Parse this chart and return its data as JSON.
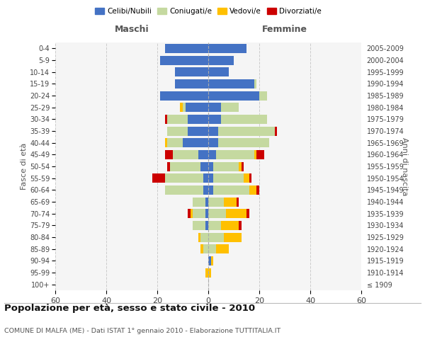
{
  "age_groups": [
    "100+",
    "95-99",
    "90-94",
    "85-89",
    "80-84",
    "75-79",
    "70-74",
    "65-69",
    "60-64",
    "55-59",
    "50-54",
    "45-49",
    "40-44",
    "35-39",
    "30-34",
    "25-29",
    "20-24",
    "15-19",
    "10-14",
    "5-9",
    "0-4"
  ],
  "birth_years": [
    "≤ 1909",
    "1910-1914",
    "1915-1919",
    "1920-1924",
    "1925-1929",
    "1930-1934",
    "1935-1939",
    "1940-1944",
    "1945-1949",
    "1950-1954",
    "1955-1959",
    "1960-1964",
    "1965-1969",
    "1970-1974",
    "1975-1979",
    "1980-1984",
    "1985-1989",
    "1990-1994",
    "1995-1999",
    "2000-2004",
    "2005-2009"
  ],
  "males": {
    "celibi": [
      0,
      0,
      0,
      0,
      0,
      1,
      1,
      1,
      2,
      2,
      3,
      4,
      10,
      8,
      8,
      9,
      19,
      13,
      13,
      19,
      17
    ],
    "coniugati": [
      0,
      0,
      0,
      2,
      3,
      5,
      5,
      5,
      15,
      15,
      12,
      10,
      6,
      8,
      8,
      1,
      0,
      0,
      0,
      0,
      0
    ],
    "vedovi": [
      0,
      1,
      0,
      1,
      1,
      0,
      1,
      0,
      0,
      0,
      0,
      0,
      1,
      0,
      0,
      1,
      0,
      0,
      0,
      0,
      0
    ],
    "divorziati": [
      0,
      0,
      0,
      0,
      0,
      0,
      1,
      0,
      0,
      5,
      1,
      3,
      0,
      0,
      1,
      0,
      0,
      0,
      0,
      0,
      0
    ]
  },
  "females": {
    "nubili": [
      0,
      0,
      1,
      0,
      0,
      0,
      0,
      0,
      2,
      2,
      2,
      3,
      4,
      4,
      5,
      5,
      20,
      18,
      8,
      10,
      15
    ],
    "coniugate": [
      0,
      0,
      0,
      3,
      6,
      5,
      7,
      6,
      14,
      12,
      10,
      15,
      20,
      22,
      18,
      7,
      3,
      1,
      0,
      0,
      0
    ],
    "vedove": [
      0,
      1,
      1,
      5,
      7,
      7,
      8,
      5,
      3,
      2,
      1,
      1,
      0,
      0,
      0,
      0,
      0,
      0,
      0,
      0,
      0
    ],
    "divorziate": [
      0,
      0,
      0,
      0,
      0,
      1,
      1,
      1,
      1,
      1,
      1,
      3,
      0,
      1,
      0,
      0,
      0,
      0,
      0,
      0,
      0
    ]
  },
  "color_celibi": "#4472c4",
  "color_coniugati": "#c5d9a0",
  "color_vedovi": "#ffc000",
  "color_divorziati": "#cc0000",
  "xlim": 60,
  "title": "Popolazione per età, sesso e stato civile - 2010",
  "subtitle": "COMUNE DI MALFA (ME) - Dati ISTAT 1° gennaio 2010 - Elaborazione TUTTITALIA.IT",
  "ylabel_left": "Fasce di età",
  "ylabel_right": "Anni di nascita",
  "xlabel_maschi": "Maschi",
  "xlabel_femmine": "Femmine",
  "bg_color": "#f5f5f5"
}
